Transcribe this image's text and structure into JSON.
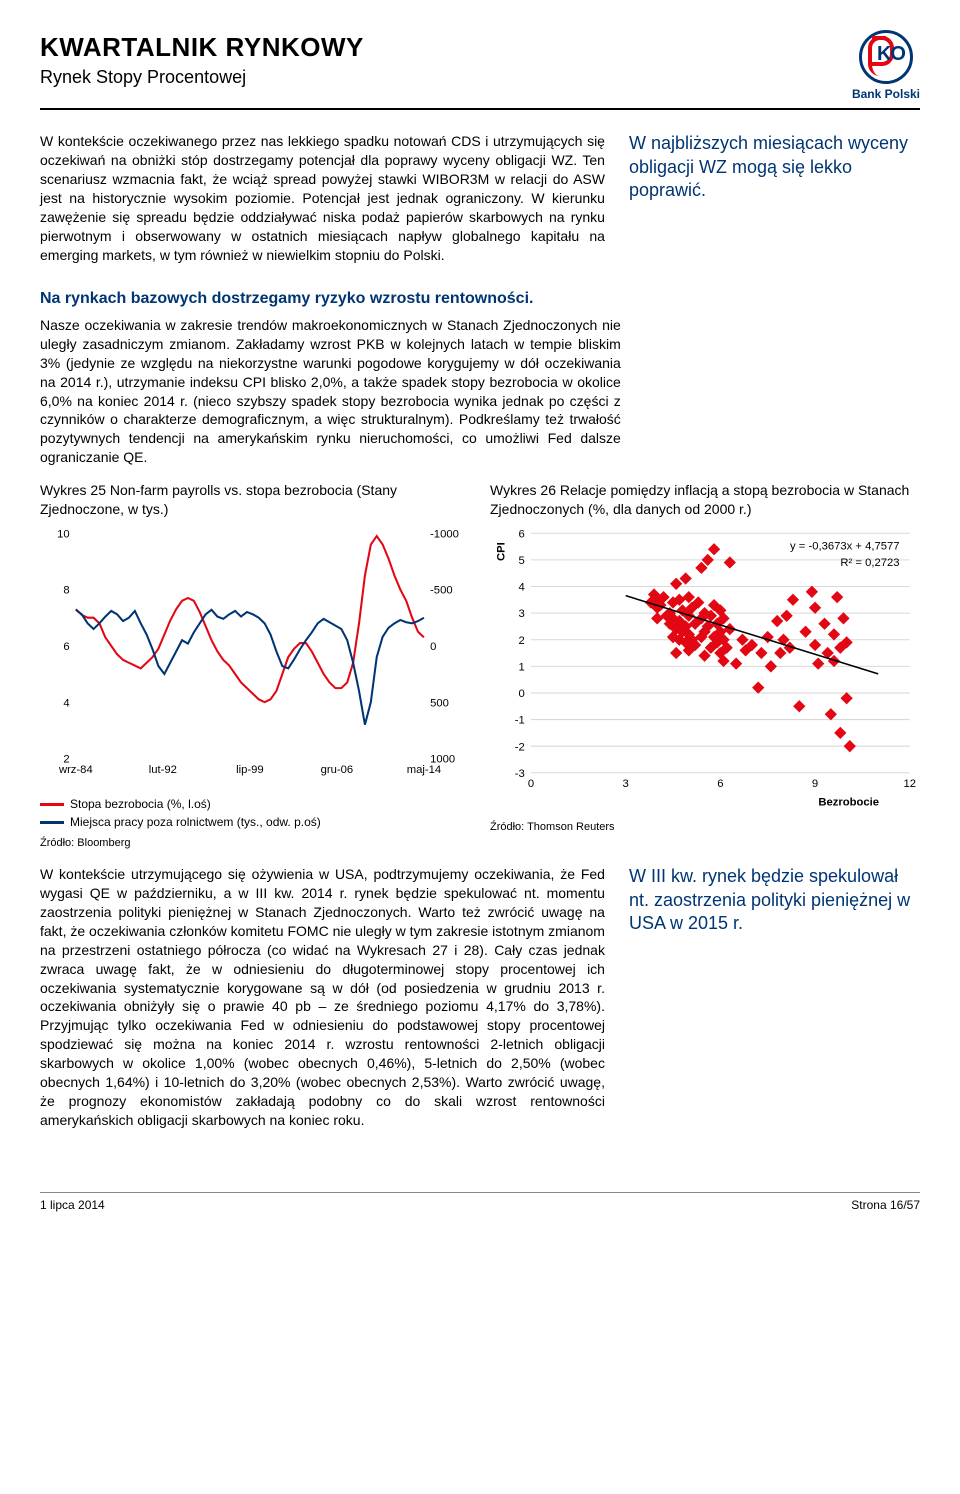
{
  "header": {
    "title": "KWARTALNIK RYNKOWY",
    "subtitle": "Rynek Stopy Procentowej",
    "bank_name": "Bank Polski"
  },
  "para1": "W kontekście oczekiwanego przez nas lekkiego spadku notowań CDS i utrzymujących się oczekiwań na obniżki stóp dostrzegamy potencjał dla poprawy wyceny obligacji WZ. Ten scenariusz wzmacnia fakt, że wciąż spread powyżej stawki WIBOR3M w relacji do ASW jest na historycznie wysokim poziomie. Potencjał jest jednak ograniczony. W kierunku zawężenie się spreadu będzie oddziaływać niska podaż papierów skarbowych na rynku pierwotnym i obserwowany w ostatnich miesiącach napływ globalnego kapitału na emerging markets, w tym również w niewielkim stopniu do Polski.",
  "callout1": "W najbliższych miesiącach wyceny obligacji WZ mogą się lekko poprawić.",
  "section2_title": "Na rynkach bazowych dostrzegamy ryzyko wzrostu rentowności.",
  "para2": "Nasze oczekiwania w zakresie trendów makroekonomicznych w Stanach Zjednoczonych nie uległy zasadniczym zmianom. Zakładamy wzrost PKB w kolejnych latach w tempie bliskim 3% (jedynie ze względu na niekorzystne warunki pogodowe korygujemy w dół oczekiwania na 2014 r.), utrzymanie indeksu CPI blisko 2,0%, a także spadek stopy bezrobocia w okolice 6,0% na koniec 2014 r. (nieco szybszy spadek stopy bezrobocia wynika jednak po części z czynników o charakterze demograficznym, a więc strukturalnym). Podkreślamy też trwałość pozytywnych tendencji na amerykańskim rynku nieruchomości, co umożliwi Fed dalsze ograniczanie QE.",
  "chart25": {
    "title": "Wykres 25 Non-farm payrolls vs. stopa bezrobocia (Stany Zjednoczone, w tys.)",
    "type": "line_dual_axis",
    "x_labels": [
      "wrz-84",
      "lut-92",
      "lip-99",
      "gru-06",
      "maj-14"
    ],
    "left_axis": {
      "min": 2,
      "max": 10,
      "ticks": [
        2,
        4,
        6,
        8,
        10
      ]
    },
    "right_axis": {
      "min": -1000,
      "max": 1000,
      "ticks": [
        -1000,
        -500,
        0,
        500,
        1000
      ],
      "reversed": true
    },
    "series": [
      {
        "name": "Stopa bezrobocia (%, l.oś)",
        "color": "#e30613",
        "width": 2,
        "points": [
          7.3,
          7.1,
          7.0,
          7.0,
          6.8,
          6.3,
          6.0,
          5.7,
          5.5,
          5.4,
          5.3,
          5.2,
          5.4,
          5.6,
          5.9,
          6.4,
          6.9,
          7.3,
          7.6,
          7.7,
          7.6,
          7.2,
          6.7,
          6.2,
          5.8,
          5.5,
          5.3,
          5.0,
          4.7,
          4.5,
          4.3,
          4.1,
          4.0,
          4.1,
          4.4,
          5.0,
          5.6,
          5.9,
          6.1,
          6.1,
          5.8,
          5.4,
          5.0,
          4.7,
          4.5,
          4.5,
          4.7,
          5.4,
          6.8,
          8.5,
          9.6,
          9.9,
          9.6,
          9.1,
          8.5,
          8.0,
          7.6,
          7.0,
          6.5,
          6.3
        ]
      },
      {
        "name": "Miejsca pracy poza rolnictwem (tys., odw. p.oś)",
        "color": "#003574",
        "width": 2,
        "points": [
          -320,
          -280,
          -200,
          -150,
          -200,
          -260,
          -310,
          -280,
          -220,
          -250,
          -310,
          -200,
          -100,
          30,
          180,
          250,
          150,
          50,
          -50,
          -20,
          -120,
          -200,
          -280,
          -320,
          -260,
          -240,
          -280,
          -310,
          -260,
          -300,
          -280,
          -250,
          -200,
          -100,
          50,
          180,
          200,
          120,
          30,
          -50,
          -120,
          -200,
          -240,
          -210,
          -180,
          -150,
          -50,
          150,
          400,
          700,
          500,
          100,
          -80,
          -160,
          -200,
          -230,
          -210,
          -200,
          -220,
          -250
        ]
      }
    ],
    "legend": [
      {
        "label": "Stopa bezrobocia (%, l.oś)",
        "color": "#e30613"
      },
      {
        "label": "Miejsca pracy poza rolnictwem (tys., odw. p.oś)",
        "color": "#003574"
      }
    ],
    "source": "Źródło: Bloomberg"
  },
  "chart26": {
    "title": "Wykres 26 Relacje pomiędzy inflacją a stopą bezrobocia w Stanach Zjednoczonych (%, dla danych od 2000 r.)",
    "type": "scatter",
    "x_axis": {
      "label": "Bezrobocie",
      "min": 0,
      "max": 12,
      "ticks": [
        0,
        3,
        6,
        9,
        12
      ]
    },
    "y_axis": {
      "label": "CPI",
      "min": -3,
      "max": 6,
      "ticks": [
        -3,
        -2,
        -1,
        0,
        1,
        2,
        3,
        4,
        5,
        6
      ]
    },
    "marker_color": "#e30613",
    "marker_shape": "diamond",
    "marker_size": 6,
    "trend": {
      "slope": -0.3673,
      "intercept": 4.7577,
      "r2": 0.2723,
      "color": "#000000",
      "width": 1.5
    },
    "equation_text": "y = -0,3673x + 4,7577",
    "r2_text": "R² = 0,2723",
    "points": [
      [
        3.8,
        3.4
      ],
      [
        3.9,
        3.7
      ],
      [
        4.0,
        3.5
      ],
      [
        4.0,
        3.2
      ],
      [
        4.0,
        2.8
      ],
      [
        4.1,
        3.3
      ],
      [
        4.2,
        3.6
      ],
      [
        4.3,
        2.9
      ],
      [
        4.4,
        2.6
      ],
      [
        4.4,
        3.0
      ],
      [
        4.5,
        2.1
      ],
      [
        4.5,
        2.8
      ],
      [
        4.5,
        3.4
      ],
      [
        4.6,
        1.5
      ],
      [
        4.6,
        2.4
      ],
      [
        4.6,
        4.1
      ],
      [
        4.7,
        2.0
      ],
      [
        4.7,
        2.7
      ],
      [
        4.7,
        3.5
      ],
      [
        4.8,
        2.3
      ],
      [
        4.8,
        3.1
      ],
      [
        4.9,
        1.9
      ],
      [
        4.9,
        2.5
      ],
      [
        4.9,
        4.3
      ],
      [
        5.0,
        1.6
      ],
      [
        5.0,
        2.2
      ],
      [
        5.0,
        2.9
      ],
      [
        5.0,
        3.6
      ],
      [
        5.1,
        2.0
      ],
      [
        5.1,
        3.2
      ],
      [
        5.2,
        1.8
      ],
      [
        5.2,
        2.6
      ],
      [
        5.3,
        3.4
      ],
      [
        5.4,
        2.1
      ],
      [
        5.4,
        2.8
      ],
      [
        5.4,
        4.7
      ],
      [
        5.5,
        1.4
      ],
      [
        5.5,
        2.3
      ],
      [
        5.5,
        3.0
      ],
      [
        5.6,
        2.5
      ],
      [
        5.6,
        5.0
      ],
      [
        5.7,
        1.7
      ],
      [
        5.7,
        2.9
      ],
      [
        5.8,
        2.1
      ],
      [
        5.8,
        3.3
      ],
      [
        5.8,
        5.4
      ],
      [
        5.9,
        1.9
      ],
      [
        5.9,
        2.6
      ],
      [
        6.0,
        1.5
      ],
      [
        6.0,
        2.3
      ],
      [
        6.0,
        3.1
      ],
      [
        6.1,
        1.2
      ],
      [
        6.1,
        2.0
      ],
      [
        6.1,
        2.8
      ],
      [
        6.2,
        1.7
      ],
      [
        6.3,
        2.4
      ],
      [
        6.3,
        4.9
      ],
      [
        6.5,
        1.1
      ],
      [
        6.7,
        2.0
      ],
      [
        6.8,
        1.6
      ],
      [
        7.0,
        1.8
      ],
      [
        7.2,
        0.2
      ],
      [
        7.3,
        1.5
      ],
      [
        7.5,
        2.1
      ],
      [
        7.6,
        1.0
      ],
      [
        7.8,
        2.7
      ],
      [
        7.9,
        1.5
      ],
      [
        8.0,
        2.0
      ],
      [
        8.1,
        2.9
      ],
      [
        8.2,
        1.7
      ],
      [
        8.3,
        3.5
      ],
      [
        8.5,
        -0.5
      ],
      [
        8.7,
        2.3
      ],
      [
        8.9,
        3.8
      ],
      [
        9.0,
        1.8
      ],
      [
        9.0,
        3.2
      ],
      [
        9.1,
        1.1
      ],
      [
        9.3,
        2.6
      ],
      [
        9.4,
        1.5
      ],
      [
        9.5,
        -0.8
      ],
      [
        9.6,
        1.2
      ],
      [
        9.6,
        2.2
      ],
      [
        9.7,
        3.6
      ],
      [
        9.8,
        1.7
      ],
      [
        9.8,
        -1.5
      ],
      [
        9.9,
        2.8
      ],
      [
        10.0,
        1.9
      ],
      [
        10.0,
        -0.2
      ],
      [
        10.1,
        -2.0
      ]
    ],
    "source": "Źródło: Thomson Reuters"
  },
  "para3": "W kontekście utrzymującego się ożywienia w USA, podtrzymujemy oczekiwania, że Fed wygasi QE w październiku, a w III kw. 2014 r. rynek będzie spekulować nt. momentu zaostrzenia polityki pieniężnej w Stanach Zjednoczonych. Warto też zwrócić uwagę na fakt, że oczekiwania członków komitetu FOMC nie uległy w tym zakresie istotnym zmianom na przestrzeni ostatniego półrocza (co widać na Wykresach 27 i 28). Cały czas jednak zwraca uwagę fakt, że w odniesieniu do długoterminowej stopy procentowej ich oczekiwania systematycznie korygowane są w dół (od posiedzenia w grudniu 2013 r. oczekiwania obniżyły się o prawie 40 pb – ze średniego poziomu 4,17% do 3,78%). Przyjmując tylko oczekiwania Fed w odniesieniu do podstawowej stopy procentowej spodziewać się można na koniec 2014 r. wzrostu rentowności 2-letnich obligacji skarbowych w okolice 1,00% (wobec obecnych 0,46%), 5-letnich do 2,50% (wobec obecnych 1,64%) i 10-letnich do 3,20% (wobec obecnych 2,53%). Warto zwrócić uwagę, że prognozy ekonomistów zakładają podobny co do skali wzrost rentowności amerykańskich obligacji skarbowych na koniec roku.",
  "callout2": "W III kw. rynek będzie spekulował nt. zaostrzenia polityki pieniężnej w USA w 2015 r.",
  "footer": {
    "date": "1 lipca 2014",
    "page": "Strona 16/57"
  }
}
